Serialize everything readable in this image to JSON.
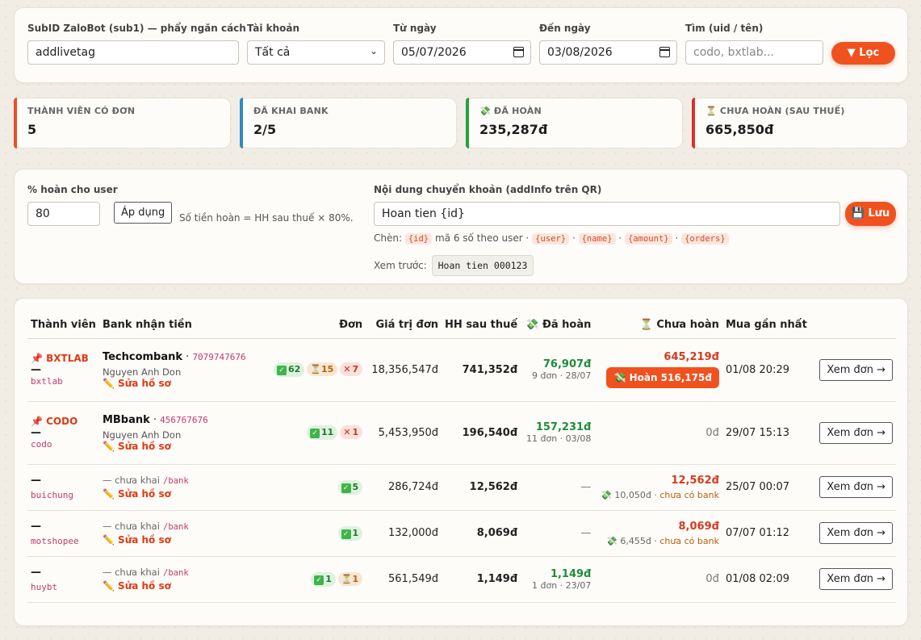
{
  "filter": {
    "subid_label": "SubID ZaloBot (sub1) — phẩy ngăn cách",
    "subid_value": "addlivetag",
    "account_label": "Tài khoản",
    "account_value": "Tất cả",
    "from_label": "Từ ngày",
    "from_value": "05/07/2026",
    "to_label": "Đến ngày",
    "to_value": "03/08/2026",
    "search_label": "Tìm (uid / tên)",
    "search_placeholder": "codo, bxtlab...",
    "filter_button": "Lọc"
  },
  "stats": [
    {
      "label": "THÀNH VIÊN CÓ ĐƠN",
      "value": "5",
      "color": "#e8512a"
    },
    {
      "label": "ĐÃ KHAI BANK",
      "value": "2/5",
      "color": "#2a8cc4"
    },
    {
      "label": "💸 ĐÃ HOÀN",
      "value": "235,287đ",
      "color": "#27a046"
    },
    {
      "label": "⏳ CHƯA HOÀN (SAU THUẾ)",
      "value": "665,850đ",
      "color": "#d9322a"
    }
  ],
  "settings": {
    "percent_label": "% hoàn cho user",
    "percent_value": "80",
    "apply_button": "Áp dụng",
    "percent_hint": "Số tiền hoàn = HH sau thuế × 80%.",
    "content_label": "Nội dung chuyển khoản (addInfo trên QR)",
    "content_value": "Hoan tien {id}",
    "save_button": "💾 Lưu",
    "hint_prefix": "Chèn:",
    "hint_id": "{id}",
    "hint_id_desc": "mã 6 số theo user ·",
    "hint_user": "{user}",
    "hint_name": "{name}",
    "hint_amount": "{amount}",
    "hint_orders": "{orders}",
    "sep": "·",
    "preview_label": "Xem trước:",
    "preview_value": "Hoan tien 000123"
  },
  "table": {
    "headers": {
      "member": "Thành viên",
      "bank": "Bank nhận tiền",
      "orders": "Đơn",
      "order_value": "Giá trị đơn",
      "commission": "HH sau thuế",
      "paid": "💸 Đã hoàn",
      "unpaid": "⏳ Chưa hoàn",
      "last_buy": "Mua gần nhất"
    },
    "rows": [
      {
        "tag": "📌 BXTLAB",
        "dash": "—",
        "handle": "bxtlab",
        "bank_name": "Techcombank",
        "bank_sep": " · ",
        "bank_acc": "7079747676",
        "holder": "Nguyen Anh Don",
        "edit": "✏️ Sửa hồ sơ",
        "ok": "62",
        "pend": "15",
        "x": "7",
        "order_value": "18,356,547đ",
        "commission": "741,352đ",
        "paid": "76,907đ",
        "paid_sub": "9 đơn · 28/07",
        "unpaid": "645,219đ",
        "unpaid_btn": "💸 Hoàn 516,175đ",
        "last_buy": "01/08 20:29",
        "view": "Xem đơn →"
      },
      {
        "tag": "📌 CODO",
        "dash": "—",
        "handle": "codo",
        "bank_name": "MBbank",
        "bank_sep": " · ",
        "bank_acc": "456767676",
        "holder": "Nguyen Anh Don",
        "edit": "✏️ Sửa hồ sơ",
        "ok": "11",
        "x": "1",
        "order_value": "5,453,950đ",
        "commission": "196,540đ",
        "paid": "157,231đ",
        "paid_sub": "11 đơn · 03/08",
        "unpaid_zero": "0đ",
        "last_buy": "29/07 15:13",
        "view": "Xem đơn →"
      },
      {
        "dash": "—",
        "handle": "buichung",
        "bank_missing": "— chưa khai",
        "bank_cmd": "/bank",
        "edit": "✏️ Sửa hồ sơ",
        "ok": "5",
        "order_value": "286,724đ",
        "commission": "12,562đ",
        "paid_none": "—",
        "unpaid": "12,562đ",
        "unpaid_sub": "💸 10,050đ",
        "unpaid_nobank": "· chưa có bank",
        "last_buy": "25/07 00:07",
        "view": "Xem đơn →"
      },
      {
        "dash": "—",
        "handle": "motshopee",
        "bank_missing": "— chưa khai",
        "bank_cmd": "/bank",
        "edit": "✏️ Sửa hồ sơ",
        "ok": "1",
        "order_value": "132,000đ",
        "commission": "8,069đ",
        "paid_none": "—",
        "unpaid": "8,069đ",
        "unpaid_sub": "💸 6,455đ",
        "unpaid_nobank": "· chưa có bank",
        "last_buy": "07/07 01:12",
        "view": "Xem đơn →"
      },
      {
        "dash": "—",
        "handle": "huybt",
        "bank_missing": "— chưa khai",
        "bank_cmd": "/bank",
        "edit": "✏️ Sửa hồ sơ",
        "ok": "1",
        "pend": "1",
        "order_value": "561,549đ",
        "commission": "1,149đ",
        "paid": "1,149đ",
        "paid_sub": "1 đơn · 23/07",
        "unpaid_zero": "0đ",
        "last_buy": "01/08 02:09",
        "view": "Xem đơn →"
      }
    ]
  }
}
